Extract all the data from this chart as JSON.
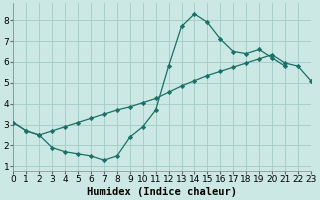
{
  "xlabel": "Humidex (Indice chaleur)",
  "bg_color": "#cce8e4",
  "grid_color": "#a8d0c8",
  "line_color": "#1a7068",
  "xlim": [
    0,
    23
  ],
  "ylim": [
    0.8,
    8.8
  ],
  "xticks": [
    0,
    1,
    2,
    3,
    4,
    5,
    6,
    7,
    8,
    9,
    10,
    11,
    12,
    13,
    14,
    15,
    16,
    17,
    18,
    19,
    20,
    21,
    22,
    23
  ],
  "yticks": [
    1,
    2,
    3,
    4,
    5,
    6,
    7,
    8
  ],
  "curve1_x": [
    0,
    1,
    2,
    3,
    4,
    5,
    6,
    7,
    8,
    9,
    10,
    11,
    12,
    13,
    14,
    15,
    16,
    17,
    18,
    19,
    20,
    21
  ],
  "curve1_y": [
    3.1,
    2.7,
    2.5,
    1.9,
    1.7,
    1.6,
    1.5,
    1.3,
    1.5,
    2.4,
    2.9,
    3.7,
    5.8,
    7.7,
    8.3,
    7.9,
    7.1,
    6.5,
    6.4,
    6.6,
    6.2,
    5.8
  ],
  "curve2_x": [
    0,
    1,
    2,
    3,
    4,
    5,
    6,
    7,
    8,
    9,
    10,
    11,
    12,
    13,
    14,
    15,
    16,
    17,
    18,
    19,
    20,
    21,
    22,
    23
  ],
  "curve2_y": [
    3.1,
    2.7,
    2.5,
    2.7,
    2.9,
    3.1,
    3.3,
    3.5,
    3.7,
    3.85,
    4.05,
    4.25,
    4.55,
    4.85,
    5.1,
    5.35,
    5.55,
    5.75,
    5.95,
    6.15,
    6.35,
    5.95,
    5.8,
    5.1
  ],
  "xlabel_fontsize": 7.5,
  "tick_fontsize": 6.5
}
